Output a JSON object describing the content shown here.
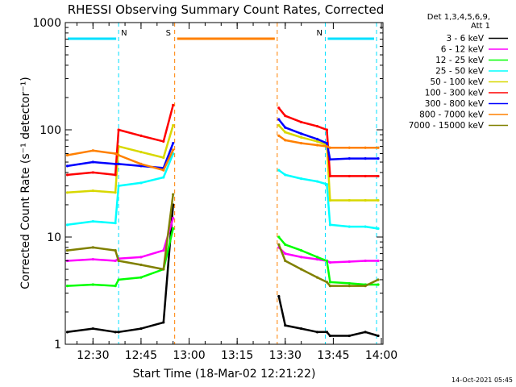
{
  "chart_data": {
    "type": "line",
    "title": "RHESSI Observing Summary Count Rates, Corrected",
    "xlabel": "Start Time (18-Mar-02 12:21:22)",
    "ylabel": "Corrected Count Rate (s⁻¹ detector⁻¹)",
    "yscale": "log",
    "ylim": [
      1,
      1000
    ],
    "xlim": [
      "12:21:22",
      "14:00:30"
    ],
    "x_tick_labels": [
      "12:30",
      "12:45",
      "13:00",
      "13:15",
      "13:30",
      "13:45",
      "14:00"
    ],
    "y_tick_labels": [
      "1",
      "10",
      "100",
      "1000"
    ],
    "legend_header": [
      "Det 1,3,4,5,6,9,",
      "Att 1"
    ],
    "legend_position": "right",
    "timestamp": "14-Oct-2021 05:45",
    "flags": [
      {
        "label": "N",
        "color": "#00e0ff",
        "intervals": [
          [
            "12:21:22",
            "12:38:00"
          ],
          [
            "13:42:30",
            "13:58:30"
          ]
        ]
      },
      {
        "label": "S",
        "color": "#ff8000",
        "intervals": [
          [
            "12:55:30",
            "13:27:30"
          ]
        ]
      }
    ],
    "gap": [
      "12:55:30",
      "13:27:30"
    ],
    "series": [
      {
        "name": "3 - 6 keV",
        "color": "#000000",
        "x": [
          "12:22",
          "12:30",
          "12:37",
          "12:38",
          "12:45",
          "12:52",
          "12:55",
          "13:28",
          "13:30",
          "13:35",
          "13:40",
          "13:43",
          "13:44",
          "13:50",
          "13:55",
          "13:59"
        ],
        "y": [
          1.3,
          1.4,
          1.3,
          1.3,
          1.4,
          1.6,
          20,
          2.8,
          1.5,
          1.4,
          1.3,
          1.3,
          1.2,
          1.2,
          1.3,
          1.2
        ]
      },
      {
        "name": "6 - 12 keV",
        "color": "#ff00ff",
        "x": [
          "12:22",
          "12:30",
          "12:37",
          "12:38",
          "12:45",
          "12:52",
          "12:55",
          "13:28",
          "13:30",
          "13:35",
          "13:40",
          "13:43",
          "13:44",
          "13:50",
          "13:55",
          "13:59"
        ],
        "y": [
          6,
          6.2,
          6,
          6.3,
          6.5,
          7.5,
          15,
          8,
          7,
          6.5,
          6.2,
          6,
          5.8,
          5.9,
          6,
          6
        ]
      },
      {
        "name": "12 - 25 keV",
        "color": "#00ff00",
        "x": [
          "12:22",
          "12:30",
          "12:37",
          "12:38",
          "12:45",
          "12:52",
          "12:55",
          "13:28",
          "13:30",
          "13:35",
          "13:40",
          "13:43",
          "13:44",
          "13:50",
          "13:55",
          "13:59"
        ],
        "y": [
          3.5,
          3.6,
          3.5,
          4,
          4.2,
          5,
          12,
          10,
          8.5,
          7.5,
          6.5,
          6,
          3.8,
          3.7,
          3.6,
          3.6
        ]
      },
      {
        "name": "25 - 50 keV",
        "color": "#00ffff",
        "x": [
          "12:22",
          "12:30",
          "12:37",
          "12:38",
          "12:45",
          "12:52",
          "12:55",
          "13:28",
          "13:30",
          "13:35",
          "13:40",
          "13:43",
          "13:44",
          "13:50",
          "13:55",
          "13:59"
        ],
        "y": [
          13,
          14,
          13.5,
          30,
          32,
          36,
          60,
          42,
          38,
          35,
          33,
          31,
          13,
          12.5,
          12.5,
          12
        ]
      },
      {
        "name": "50 - 100 keV",
        "color": "#d8d800",
        "x": [
          "12:22",
          "12:30",
          "12:37",
          "12:38",
          "12:45",
          "12:52",
          "12:55",
          "13:28",
          "13:30",
          "13:35",
          "13:40",
          "13:43",
          "13:44",
          "13:50",
          "13:55",
          "13:59"
        ],
        "y": [
          26,
          27,
          26,
          70,
          62,
          55,
          110,
          110,
          95,
          85,
          78,
          72,
          22,
          22,
          22,
          22
        ]
      },
      {
        "name": "100 - 300 keV",
        "color": "#ff0000",
        "x": [
          "12:22",
          "12:30",
          "12:37",
          "12:38",
          "12:45",
          "12:52",
          "12:55",
          "13:28",
          "13:30",
          "13:35",
          "13:40",
          "13:43",
          "13:44",
          "13:50",
          "13:55",
          "13:59"
        ],
        "y": [
          38,
          40,
          38,
          100,
          88,
          78,
          170,
          160,
          135,
          118,
          108,
          100,
          37,
          37,
          37,
          37
        ]
      },
      {
        "name": "300 - 800 keV",
        "color": "#0000ff",
        "x": [
          "12:22",
          "12:30",
          "12:37",
          "12:38",
          "12:45",
          "12:52",
          "12:55",
          "13:28",
          "13:30",
          "13:35",
          "13:40",
          "13:43",
          "13:44",
          "13:50",
          "13:55",
          "13:59"
        ],
        "y": [
          46,
          50,
          48,
          48,
          46,
          44,
          75,
          125,
          105,
          92,
          82,
          75,
          53,
          54,
          54,
          54
        ]
      },
      {
        "name": "800 - 7000 keV",
        "color": "#ff8000",
        "x": [
          "12:22",
          "12:30",
          "12:37",
          "12:38",
          "12:45",
          "12:52",
          "12:55",
          "13:28",
          "13:30",
          "13:35",
          "13:40",
          "13:43",
          "13:44",
          "13:50",
          "13:55",
          "13:59"
        ],
        "y": [
          58,
          64,
          60,
          58,
          48,
          42,
          65,
          88,
          80,
          75,
          72,
          70,
          68,
          68,
          68,
          68
        ]
      },
      {
        "name": "7000 - 15000 keV",
        "color": "#808000",
        "x": [
          "12:22",
          "12:30",
          "12:37",
          "12:38",
          "12:45",
          "12:52",
          "12:55",
          "13:28",
          "13:30",
          "13:35",
          "13:40",
          "13:43",
          "13:44",
          "13:50",
          "13:55",
          "13:59"
        ],
        "y": [
          7.5,
          8,
          7.5,
          6,
          5.5,
          5,
          25,
          8.5,
          6,
          5,
          4.2,
          3.8,
          3.5,
          3.5,
          3.5,
          4
        ]
      }
    ]
  }
}
